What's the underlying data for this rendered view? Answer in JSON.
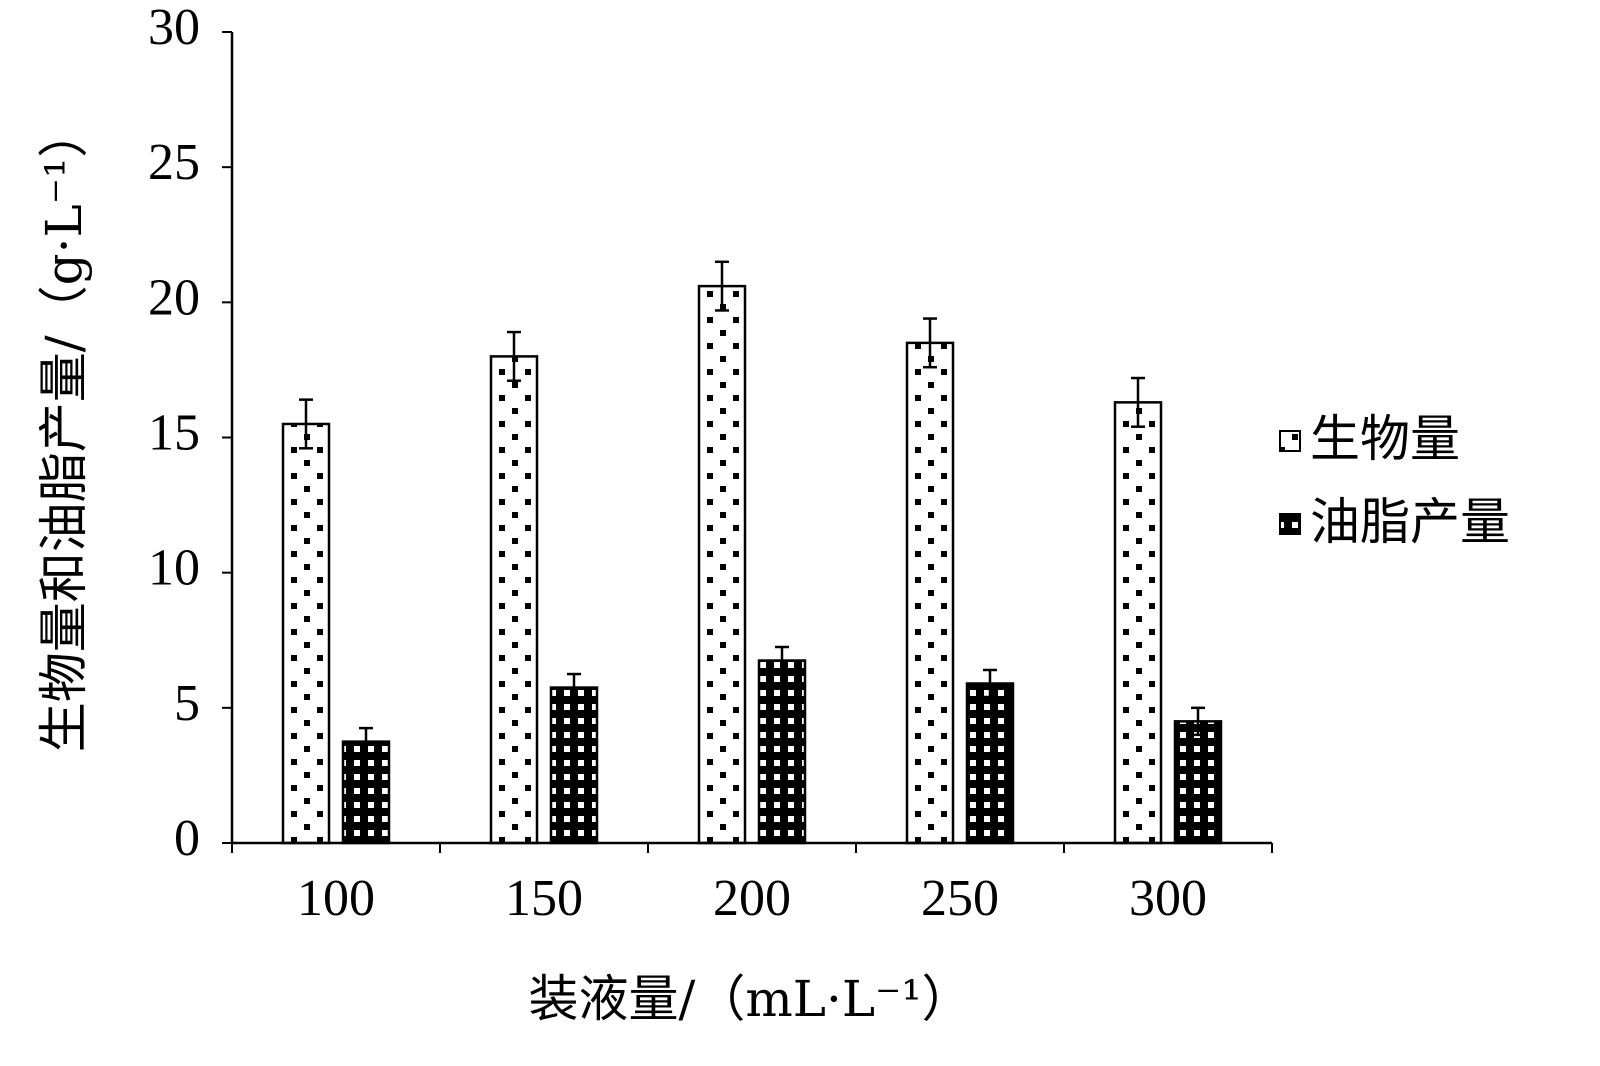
{
  "chart_data": {
    "type": "bar",
    "categories": [
      "100",
      "150",
      "200",
      "250",
      "300"
    ],
    "series": [
      {
        "name": "生物量",
        "values": [
          15.5,
          18.0,
          20.6,
          18.5,
          16.3
        ],
        "errors": [
          0.9,
          0.9,
          0.9,
          0.9,
          0.9
        ],
        "pattern": "dots"
      },
      {
        "name": "油脂产量",
        "values": [
          3.75,
          5.75,
          6.75,
          5.9,
          4.5
        ],
        "errors": [
          0.5,
          0.5,
          0.5,
          0.5,
          0.5
        ],
        "pattern": "checker"
      }
    ],
    "xlabel": "装液量/（mL·L⁻¹）",
    "ylabel": "生物量和油脂产量/（g·L⁻¹）",
    "ylim": [
      0,
      30
    ],
    "yticks": [
      "0",
      "5",
      "10",
      "15",
      "20",
      "25",
      "30"
    ],
    "grid": false,
    "legend_position": "right",
    "colors": {
      "bar_fill": "#ffffff",
      "outline": "#000000"
    }
  }
}
